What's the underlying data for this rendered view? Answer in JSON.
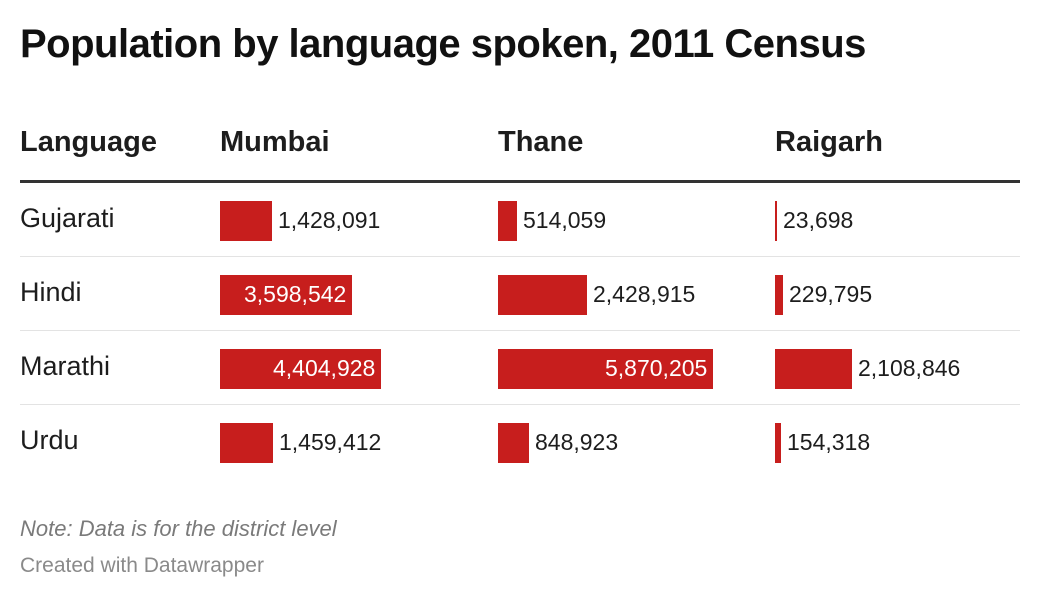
{
  "title": "Population by language spoken, 2011 Census",
  "note": "Note: Data is for the district level",
  "credit": "Created with Datawrapper",
  "colors": {
    "bar": "#c71e1d"
  },
  "chart_data": {
    "type": "table",
    "title": "Population by language spoken, 2011 Census",
    "columns": [
      "Language",
      "Mumbai",
      "Thane",
      "Raigarh"
    ],
    "rows": [
      {
        "language": "Gujarati",
        "values": [
          1428091,
          514059,
          23698
        ],
        "labels": [
          "1,428,091",
          "514,059",
          "23,698"
        ]
      },
      {
        "language": "Hindi",
        "values": [
          3598542,
          2428915,
          229795
        ],
        "labels": [
          "3,598,542",
          "2,428,915",
          "229,795"
        ]
      },
      {
        "language": "Marathi",
        "values": [
          4404928,
          5870205,
          2108846
        ],
        "labels": [
          "4,404,928",
          "5,870,205",
          "2,108,846"
        ]
      },
      {
        "language": "Urdu",
        "values": [
          1459412,
          848923,
          154318
        ],
        "labels": [
          "1,459,412",
          "848,923",
          "154,318"
        ]
      }
    ],
    "bar_max": 5870205,
    "annotations": [
      "Note: Data is for the district level"
    ]
  }
}
